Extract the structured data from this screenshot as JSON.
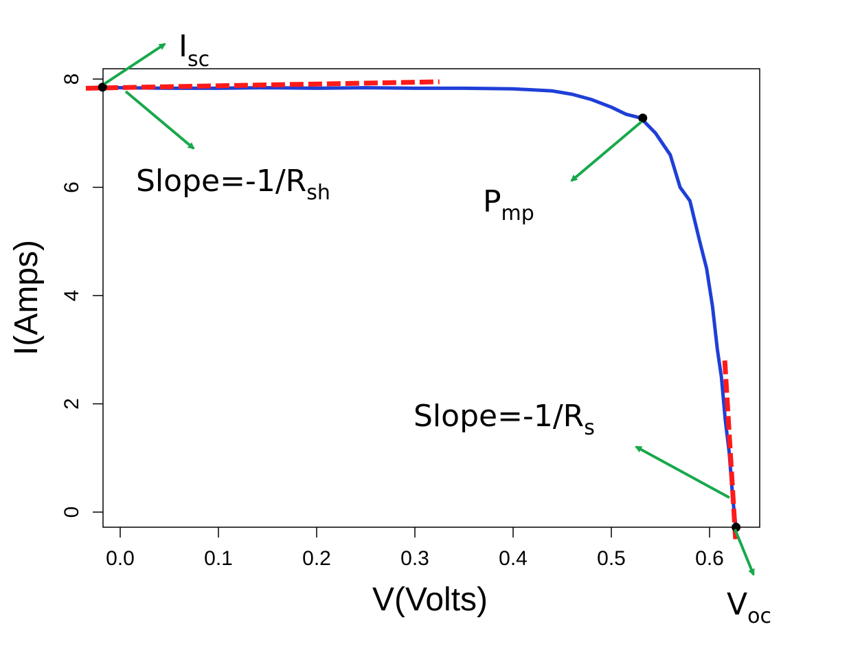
{
  "chart_data": {
    "type": "line",
    "xlabel": "V(Volts)",
    "ylabel": "I(Amps)",
    "xlim": [
      -0.02,
      0.65
    ],
    "ylim": [
      -0.3,
      8.3
    ],
    "xticks": [
      0.0,
      0.1,
      0.2,
      0.3,
      0.4,
      0.5,
      0.6
    ],
    "xtick_labels": [
      "0.0",
      "0.1",
      "0.2",
      "0.3",
      "0.4",
      "0.5",
      "0.6"
    ],
    "yticks": [
      0,
      2,
      4,
      6,
      8
    ],
    "ytick_labels": [
      "0",
      "2",
      "4",
      "6",
      "8"
    ],
    "grid": false,
    "series": [
      {
        "color": "#1f3fd6",
        "x": [
          -0.018,
          0.0,
          0.05,
          0.1,
          0.15,
          0.2,
          0.25,
          0.3,
          0.35,
          0.4,
          0.44,
          0.46,
          0.48,
          0.5,
          0.515,
          0.53,
          0.545,
          0.56,
          0.57,
          0.58,
          0.59,
          0.597,
          0.603,
          0.608,
          0.612,
          0.616,
          0.62,
          0.623,
          0.625,
          0.627
        ],
        "y": [
          7.85,
          7.84,
          7.83,
          7.83,
          7.84,
          7.83,
          7.84,
          7.83,
          7.83,
          7.82,
          7.78,
          7.72,
          7.62,
          7.48,
          7.35,
          7.28,
          7.0,
          6.6,
          6.0,
          5.75,
          5.0,
          4.5,
          3.8,
          3.0,
          2.5,
          1.7,
          1.1,
          0.4,
          0.0,
          -0.28
        ]
      }
    ],
    "reference_lines": [
      {
        "color": "#ff1a1a",
        "x": [
          -0.035,
          0.325
        ],
        "y": [
          7.83,
          7.95
        ]
      },
      {
        "color": "#ff1a1a",
        "x": [
          0.6155,
          0.6265
        ],
        "y": [
          2.8,
          -0.5
        ]
      }
    ],
    "points": [
      {
        "name": "Isc",
        "x": -0.018,
        "y": 7.85
      },
      {
        "name": "Pmp",
        "x": 0.532,
        "y": 7.28
      },
      {
        "name": "Voc",
        "x": 0.627,
        "y": -0.28
      }
    ],
    "annotations": [
      {
        "main": "I",
        "sub": "sc"
      },
      {
        "main": "Slope=-1/R",
        "sub": "sh"
      },
      {
        "main": "P",
        "sub": "mp"
      },
      {
        "main": "Slope=-1/R",
        "sub": "s"
      },
      {
        "main": "V",
        "sub": "oc"
      }
    ],
    "annotation_arrow_color": "#17a84b"
  }
}
